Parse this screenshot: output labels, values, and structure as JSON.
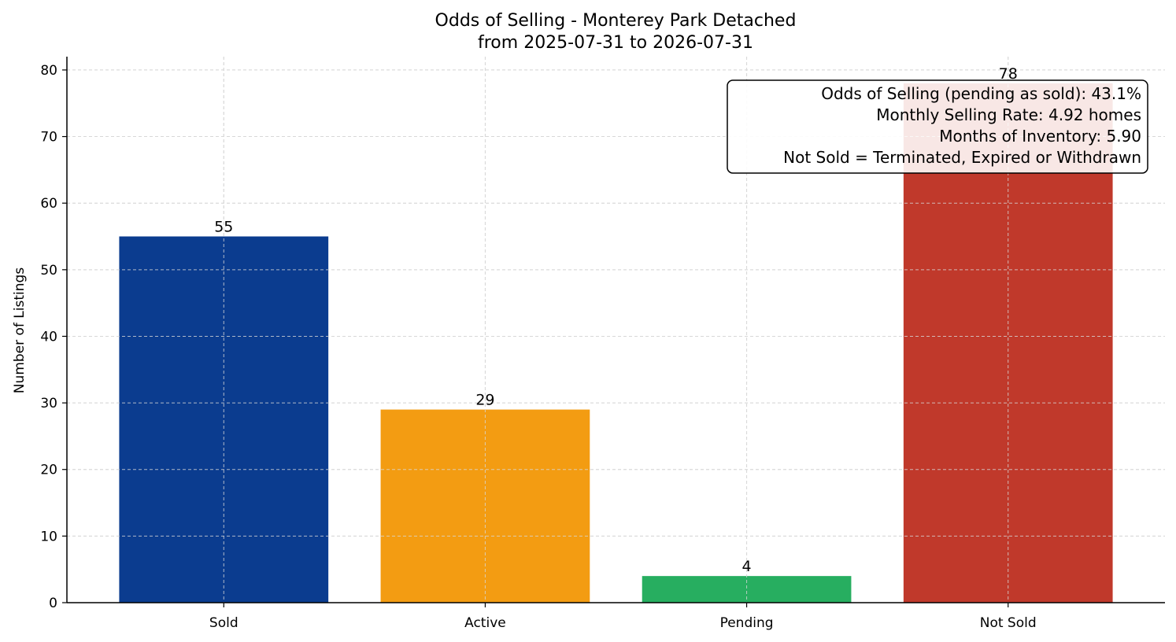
{
  "chart_data": {
    "type": "bar",
    "title": "Odds of Selling - Monterey Park Detached",
    "subtitle": "from 2025-07-31 to 2026-07-31",
    "xlabel": "",
    "ylabel": "Number of Listings",
    "categories": [
      "Sold",
      "Active",
      "Pending",
      "Not Sold"
    ],
    "values": [
      55,
      29,
      4,
      78
    ],
    "colors": [
      "#0b3c8f",
      "#f39c12",
      "#27ae60",
      "#c0392b"
    ],
    "ylim": [
      0,
      82
    ],
    "yticks": [
      0,
      10,
      20,
      30,
      40,
      50,
      60,
      70,
      80
    ],
    "grid": true,
    "annotation": {
      "placement": "top-right",
      "lines": [
        "Odds of Selling (pending as sold): 43.1%",
        "Monthly Selling Rate: 4.92 homes",
        "Months of Inventory: 5.90",
        "Not Sold = Terminated, Expired or Withdrawn"
      ]
    }
  }
}
